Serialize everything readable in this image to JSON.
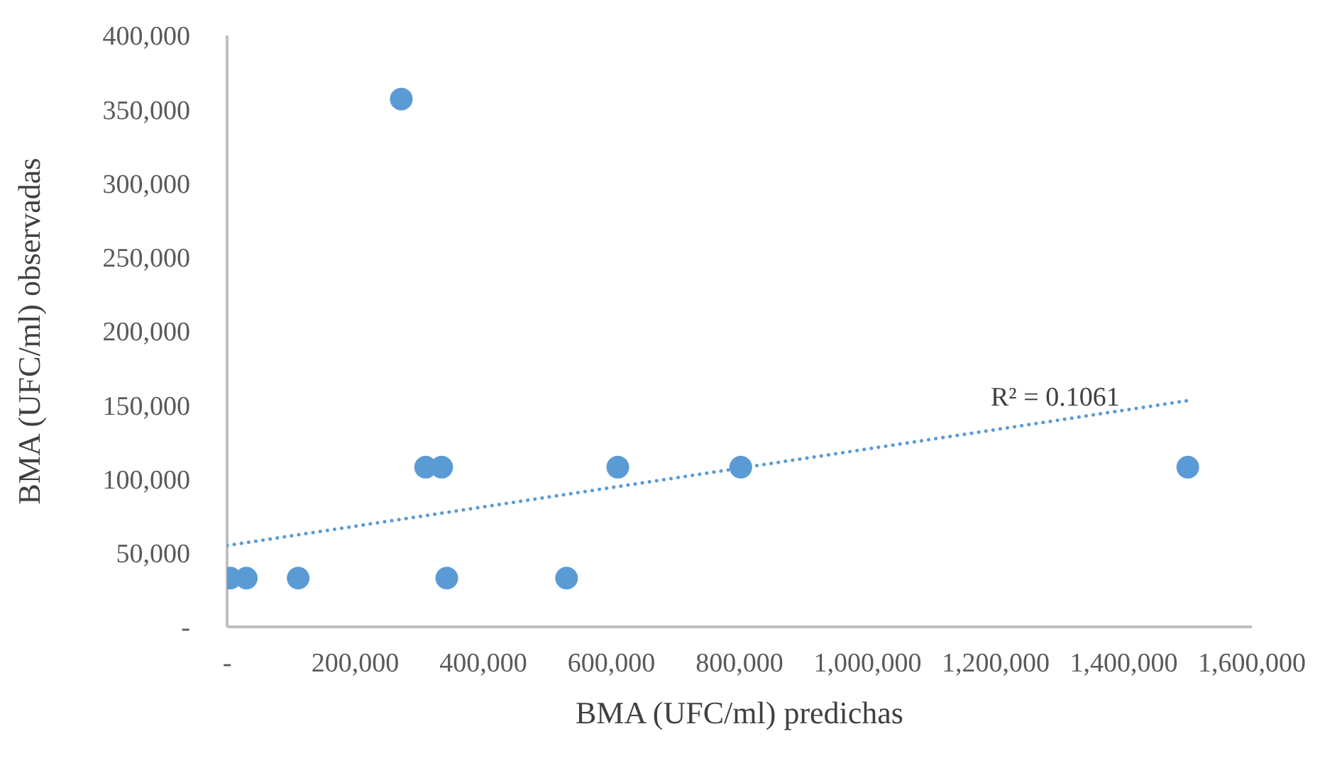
{
  "chart_data": {
    "type": "scatter",
    "xlabel": "BMA (UFC/ml) predichas",
    "ylabel": "BMA (UFC/ml) observadas",
    "xlim": [
      0,
      1600000
    ],
    "xticks": [
      {
        "value": 0,
        "label": "-"
      },
      {
        "value": 200000,
        "label": "200,000"
      },
      {
        "value": 400000,
        "label": "400,000"
      },
      {
        "value": 600000,
        "label": "600,000"
      },
      {
        "value": 800000,
        "label": "800,000"
      },
      {
        "value": 1000000,
        "label": "1,000,000"
      },
      {
        "value": 1200000,
        "label": "1,200,000"
      },
      {
        "value": 1400000,
        "label": "1,400,000"
      },
      {
        "value": 1600000,
        "label": "1,600,000"
      }
    ],
    "ylim": [
      0,
      400000
    ],
    "yticks": [
      {
        "value": 0,
        "label": "-"
      },
      {
        "value": 50000,
        "label": "50,000"
      },
      {
        "value": 100000,
        "label": "100,000"
      },
      {
        "value": 150000,
        "label": "150,000"
      },
      {
        "value": 200000,
        "label": "200,000"
      },
      {
        "value": 250000,
        "label": "250,000"
      },
      {
        "value": 300000,
        "label": "300,000"
      },
      {
        "value": 350000,
        "label": "350,000"
      },
      {
        "value": 400000,
        "label": "400,000"
      }
    ],
    "grid": false,
    "marker": "circle",
    "series": [
      {
        "color": "#5b9bd5",
        "x": [
          5000,
          30000,
          111000,
          343000,
          530000,
          310000,
          335000,
          610000,
          802000,
          1500000,
          272000
        ],
        "values": [
          33000,
          33000,
          33000,
          33000,
          33000,
          108000,
          108000,
          108000,
          108000,
          108000,
          357000
        ]
      },
      {
        "type": "line",
        "color": "#5b9bd5",
        "line_style": "dotted",
        "marker": "none",
        "x": [
          0,
          1500000
        ],
        "values": [
          55000,
          153000
        ]
      }
    ],
    "annotations": [
      "R² = 0.1061"
    ]
  }
}
